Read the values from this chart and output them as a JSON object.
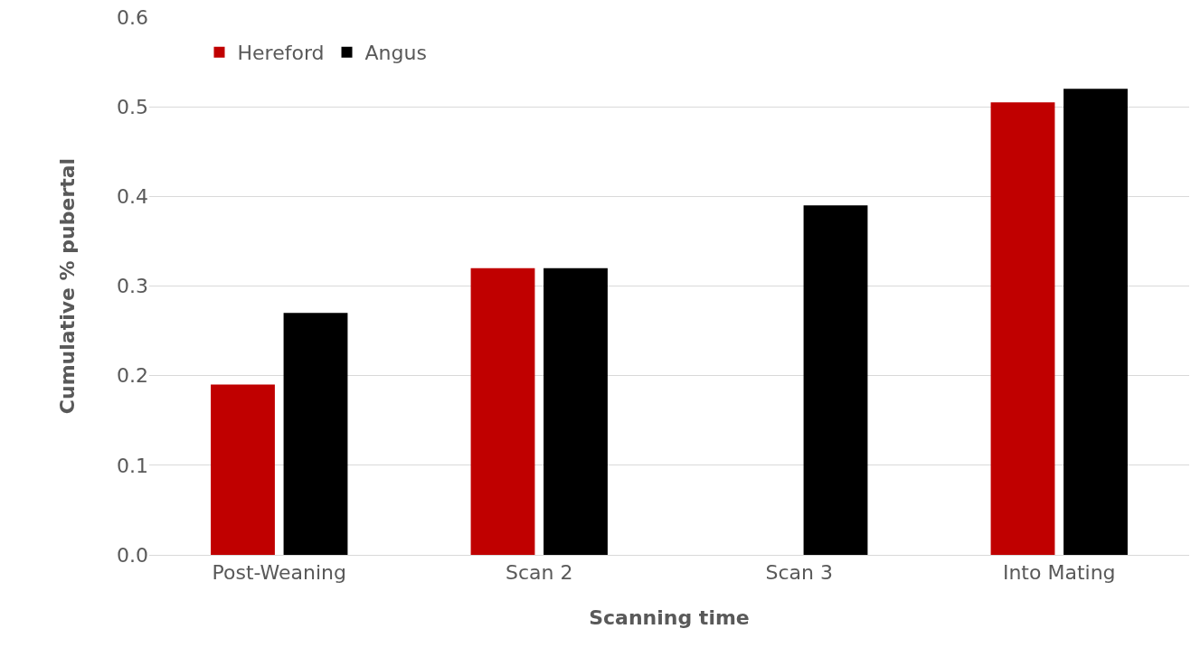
{
  "chart_data": {
    "type": "bar",
    "xlabel": "Scanning time",
    "ylabel": "Cumulative % pubertal",
    "categories": [
      "Post-Weaning",
      "Scan 2",
      "Scan 3",
      "Into Mating"
    ],
    "series": [
      {
        "name": "Hereford",
        "color": "#c00000",
        "values": [
          0.19,
          0.32,
          null,
          0.505
        ]
      },
      {
        "name": "Angus",
        "color": "#000000",
        "values": [
          0.27,
          0.32,
          0.39,
          0.52
        ]
      }
    ],
    "ylim": [
      0,
      0.6
    ],
    "yticks": [
      {
        "value": 0,
        "label": "0.0"
      },
      0.1,
      0.2,
      0.3,
      0.4,
      0.5,
      0.6
    ],
    "grid": "y",
    "legend": "top left"
  }
}
